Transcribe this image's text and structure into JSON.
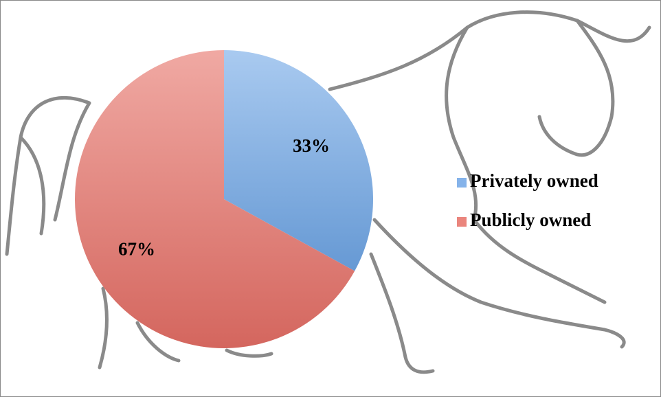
{
  "chart_data": {
    "type": "pie",
    "categories": [
      "Privately owned",
      "Publicly owned"
    ],
    "values": [
      33,
      67
    ],
    "value_labels": [
      "33%",
      "67%"
    ],
    "colors": [
      "#6fa6e6",
      "#e66f66"
    ],
    "legend": "right"
  }
}
